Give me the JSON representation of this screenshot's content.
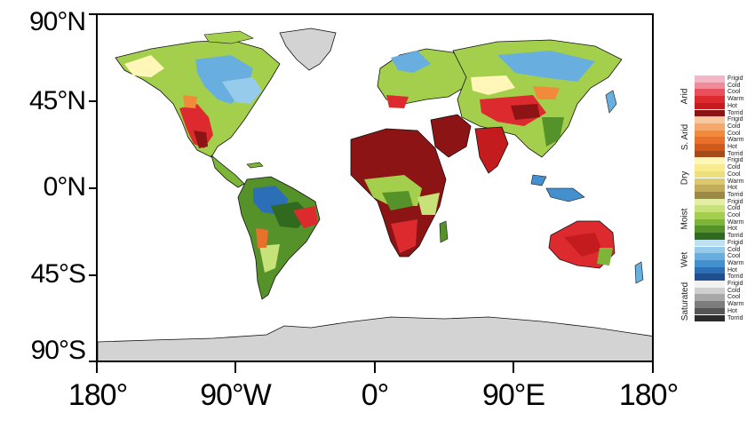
{
  "axes": {
    "lat_labels": [
      "90°N",
      "45°N",
      "0°N",
      "45°S",
      "90°S"
    ],
    "lon_labels": [
      "180°",
      "90°W",
      "0°",
      "90°E",
      "180°"
    ]
  },
  "legend": {
    "groups": [
      {
        "name": "Arid",
        "items": [
          {
            "label": "Frigid",
            "color": "#f4b6c4"
          },
          {
            "label": "Cold",
            "color": "#ef8a9a"
          },
          {
            "label": "Cool",
            "color": "#e8505e"
          },
          {
            "label": "Warm",
            "color": "#dc2a2f"
          },
          {
            "label": "Hot",
            "color": "#c31b1e"
          },
          {
            "label": "Torrid",
            "color": "#8c1414"
          }
        ]
      },
      {
        "name": "S. Arid",
        "items": [
          {
            "label": "Frigid",
            "color": "#f8c9a0"
          },
          {
            "label": "Cold",
            "color": "#f5a86a"
          },
          {
            "label": "Cool",
            "color": "#f28a3c"
          },
          {
            "label": "Warm",
            "color": "#e7712a"
          },
          {
            "label": "Hot",
            "color": "#cf5a1c"
          },
          {
            "label": "Torrid",
            "color": "#a54a18"
          }
        ]
      },
      {
        "name": "Dry",
        "items": [
          {
            "label": "Frigid",
            "color": "#fff6b8"
          },
          {
            "label": "Cold",
            "color": "#f8eb8c"
          },
          {
            "label": "Cool",
            "color": "#ece07c"
          },
          {
            "label": "Warm",
            "color": "#d9c86c"
          },
          {
            "label": "Hot",
            "color": "#c2ac5a"
          },
          {
            "label": "Torrid",
            "color": "#9c8a44"
          }
        ]
      },
      {
        "name": "Moist",
        "items": [
          {
            "label": "Frigid",
            "color": "#e3efa4"
          },
          {
            "label": "Cold",
            "color": "#c8e27a"
          },
          {
            "label": "Cool",
            "color": "#a3cf4c"
          },
          {
            "label": "Warm",
            "color": "#7cb537"
          },
          {
            "label": "Hot",
            "color": "#56922a"
          },
          {
            "label": "Torrid",
            "color": "#2f6a1f"
          }
        ]
      },
      {
        "name": "Wet",
        "items": [
          {
            "label": "Frigid",
            "color": "#bfe0f2"
          },
          {
            "label": "Cold",
            "color": "#96cbec"
          },
          {
            "label": "Cool",
            "color": "#68afe0"
          },
          {
            "label": "Warm",
            "color": "#4490cf"
          },
          {
            "label": "Hot",
            "color": "#2d6fb6"
          },
          {
            "label": "Torrid",
            "color": "#1f4f8e"
          }
        ]
      },
      {
        "name": "Saturated",
        "items": [
          {
            "label": "Frigid",
            "color": "#f2f2f2"
          },
          {
            "label": "Cold",
            "color": "#cfcfcf"
          },
          {
            "label": "Cool",
            "color": "#a8a8a8"
          },
          {
            "label": "Warm",
            "color": "#7d7d7d"
          },
          {
            "label": "Hot",
            "color": "#555555"
          },
          {
            "label": "Torrid",
            "color": "#2b2b2b"
          }
        ]
      }
    ]
  },
  "colors": {
    "ice": "#d3d3d3",
    "ocean": "#ffffff",
    "coast": "#111111"
  }
}
